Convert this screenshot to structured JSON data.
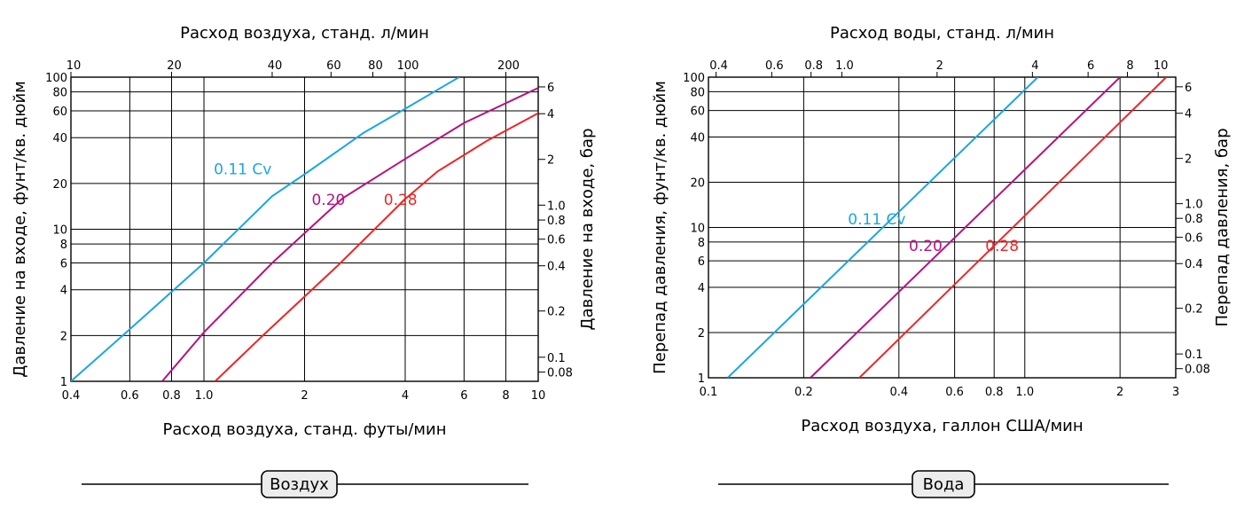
{
  "chart_data": [
    {
      "type": "line",
      "xscale": "log",
      "yscale": "log",
      "grid": true,
      "xlabel": "Расход воздуха, станд. футы/мин",
      "ylabel": "Давление на входе, фунт/кв. дюйм",
      "top_xlabel": "Расход воздуха, станд. л/мин",
      "right_ylabel": "Давление на входе, бар",
      "xlim": [
        0.4,
        10
      ],
      "ylim": [
        1,
        100
      ],
      "x_ticks": [
        0.4,
        0.6,
        0.8,
        1.0,
        2,
        4,
        6,
        8,
        10
      ],
      "x_tick_labels": [
        "0.4",
        "0.6",
        "0.8",
        "1.0",
        "2",
        "4",
        "6",
        "8",
        "10"
      ],
      "y_ticks": [
        1,
        2,
        4,
        6,
        8,
        10,
        20,
        40,
        60,
        80,
        100
      ],
      "y_tick_labels": [
        "1",
        "2",
        "4",
        "6",
        "8",
        "10",
        "20",
        "40",
        "60",
        "80",
        "100"
      ],
      "top_x_ticks": [
        "10",
        "20",
        "40",
        "60",
        "80",
        "100",
        "200"
      ],
      "right_y_ticks": [
        "0.08",
        "0.1",
        "0.2",
        "0.4",
        "0.6",
        "0.8",
        "1.0",
        "2",
        "4",
        "6"
      ],
      "series": [
        {
          "name": "0.11 Cv",
          "color": "#1aa7e0",
          "x": [
            0.4,
            0.6,
            1.0,
            1.6,
            2.0,
            3.0,
            4.0,
            5.8
          ],
          "y": [
            1,
            2.2,
            6,
            16.5,
            23,
            43,
            62,
            100
          ]
        },
        {
          "name": "0.20",
          "color": "#b5137e",
          "x": [
            0.75,
            1.0,
            1.6,
            2.6,
            4.0,
            6.0,
            10.0
          ],
          "y": [
            1,
            2.1,
            6,
            16,
            29,
            50,
            85
          ]
        },
        {
          "name": "0.28",
          "color": "#ee2525",
          "x": [
            1.08,
            1.5,
            2.5,
            4.0,
            5.0,
            7.0,
            10.0
          ],
          "y": [
            1,
            2.0,
            5.7,
            15.8,
            24,
            38,
            58
          ]
        }
      ],
      "caption": "Воздух"
    },
    {
      "type": "line",
      "xscale": "log",
      "yscale": "log",
      "grid": true,
      "xlabel": "Расход воздуха, галлон США/мин",
      "ylabel": "Перепад давления, фунт/кв. дюйм",
      "top_xlabel": "Расход воды, станд. л/мин",
      "right_ylabel": "Перепад давления, бар",
      "xlim": [
        0.1,
        3
      ],
      "ylim": [
        1,
        100
      ],
      "x_ticks": [
        0.1,
        0.2,
        0.4,
        0.6,
        0.8,
        1.0,
        2,
        3
      ],
      "x_tick_labels": [
        "0.1",
        "0.2",
        "0.4",
        "0.6",
        "0.8",
        "1.0",
        "2",
        "3"
      ],
      "y_ticks": [
        1,
        2,
        4,
        6,
        8,
        10,
        20,
        40,
        60,
        80,
        100
      ],
      "y_tick_labels": [
        "1",
        "2",
        "4",
        "6",
        "8",
        "10",
        "20",
        "40",
        "60",
        "80",
        "100"
      ],
      "top_x_ticks": [
        "0.4",
        "0.6",
        "0.8",
        "1.0",
        "2",
        "4",
        "6",
        "8",
        "10"
      ],
      "right_y_ticks": [
        "0.08",
        "0.1",
        "0.2",
        "0.4",
        "0.6",
        "0.8",
        "1.0",
        "2",
        "4",
        "6"
      ],
      "series": [
        {
          "name": "0.11 Cv",
          "color": "#1aa7e0",
          "x": [
            0.115,
            1.1
          ],
          "y": [
            1,
            100
          ]
        },
        {
          "name": "0.20",
          "color": "#b5137e",
          "x": [
            0.21,
            2.0
          ],
          "y": [
            1,
            100
          ]
        },
        {
          "name": "0.28",
          "color": "#ee2525",
          "x": [
            0.3,
            2.8
          ],
          "y": [
            1,
            100
          ]
        }
      ],
      "caption": "Вода"
    }
  ]
}
